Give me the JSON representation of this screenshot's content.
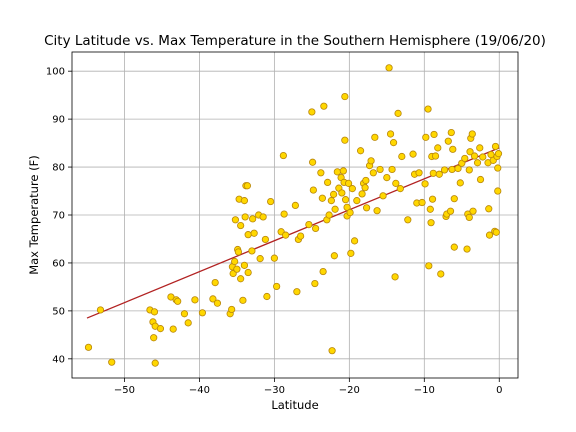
{
  "chart_data": {
    "type": "scatter",
    "title": "City Latitude vs. Max Temperature in the Southern Hemisphere (19/06/20)",
    "xlabel": "Latitude",
    "ylabel": "Max Temperature (F)",
    "xlim": [
      -57,
      2.5
    ],
    "ylim": [
      36,
      104
    ],
    "xticks": [
      -50,
      -40,
      -30,
      -20,
      -10,
      0
    ],
    "yticks": [
      40,
      50,
      60,
      70,
      80,
      90,
      100
    ],
    "grid": true,
    "marker_color": "#ffd700",
    "marker_edge_color": "#b8860b",
    "regression_color": "#b22222",
    "regression_line": {
      "x": [
        -55,
        0
      ],
      "y": [
        48.5,
        84
      ]
    },
    "points": [
      [
        -54.8,
        42.4
      ],
      [
        -53.2,
        50.2
      ],
      [
        -51.7,
        39.3
      ],
      [
        -46.6,
        50.2
      ],
      [
        -46.2,
        47.7
      ],
      [
        -46.1,
        44.4
      ],
      [
        -46.0,
        49.8
      ],
      [
        -45.9,
        39.1
      ],
      [
        -45.9,
        46.8
      ],
      [
        -45.2,
        46.3
      ],
      [
        -43.8,
        52.9
      ],
      [
        -43.5,
        46.2
      ],
      [
        -43.1,
        52.3
      ],
      [
        -42.9,
        52.0
      ],
      [
        -42.0,
        49.4
      ],
      [
        -41.5,
        47.5
      ],
      [
        -40.6,
        52.3
      ],
      [
        -39.6,
        49.6
      ],
      [
        -38.2,
        52.5
      ],
      [
        -37.9,
        55.9
      ],
      [
        -37.6,
        51.6
      ],
      [
        -35.9,
        49.4
      ],
      [
        -35.7,
        50.3
      ],
      [
        -35.6,
        59.2
      ],
      [
        -35.5,
        57.8
      ],
      [
        -35.3,
        60.3
      ],
      [
        -35.2,
        69.0
      ],
      [
        -35.0,
        58.7
      ],
      [
        -34.9,
        62.8
      ],
      [
        -34.8,
        62.3
      ],
      [
        -34.7,
        73.3
      ],
      [
        -34.5,
        56.7
      ],
      [
        -34.5,
        67.8
      ],
      [
        -34.2,
        52.2
      ],
      [
        -34.0,
        73.0
      ],
      [
        -34.0,
        59.5
      ],
      [
        -33.9,
        69.6
      ],
      [
        -33.8,
        76.1
      ],
      [
        -33.6,
        76.1
      ],
      [
        -33.5,
        58.0
      ],
      [
        -33.5,
        65.9
      ],
      [
        -33.0,
        62.5
      ],
      [
        -32.9,
        69.2
      ],
      [
        -32.7,
        66.2
      ],
      [
        -32.1,
        70.0
      ],
      [
        -31.9,
        60.9
      ],
      [
        -31.5,
        69.6
      ],
      [
        -31.2,
        64.9
      ],
      [
        -31.0,
        53.0
      ],
      [
        -30.5,
        72.8
      ],
      [
        -30.0,
        61.0
      ],
      [
        -29.7,
        55.1
      ],
      [
        -29.1,
        66.5
      ],
      [
        -28.8,
        82.4
      ],
      [
        -28.7,
        70.2
      ],
      [
        -28.5,
        65.8
      ],
      [
        -27.2,
        72.0
      ],
      [
        -27.0,
        54.0
      ],
      [
        -26.8,
        64.9
      ],
      [
        -26.5,
        65.6
      ],
      [
        -25.4,
        68.0
      ],
      [
        -25.0,
        91.5
      ],
      [
        -24.9,
        81.0
      ],
      [
        -24.8,
        75.2
      ],
      [
        -24.6,
        55.7
      ],
      [
        -24.5,
        67.2
      ],
      [
        -23.8,
        78.8
      ],
      [
        -23.6,
        73.5
      ],
      [
        -23.5,
        58.2
      ],
      [
        -23.4,
        92.7
      ],
      [
        -23.0,
        69.0
      ],
      [
        -22.9,
        76.8
      ],
      [
        -22.7,
        70.0
      ],
      [
        -22.4,
        73.0
      ],
      [
        -22.3,
        41.7
      ],
      [
        -22.1,
        74.3
      ],
      [
        -22.0,
        61.5
      ],
      [
        -21.9,
        71.2
      ],
      [
        -21.6,
        79.0
      ],
      [
        -21.4,
        75.6
      ],
      [
        -21.1,
        77.8
      ],
      [
        -21.0,
        74.6
      ],
      [
        -20.8,
        79.2
      ],
      [
        -20.7,
        76.8
      ],
      [
        -20.6,
        94.7
      ],
      [
        -20.6,
        85.6
      ],
      [
        -20.5,
        73.2
      ],
      [
        -20.3,
        71.6
      ],
      [
        -20.3,
        69.8
      ],
      [
        -20.1,
        76.6
      ],
      [
        -19.9,
        70.5
      ],
      [
        -19.8,
        62.0
      ],
      [
        -19.6,
        75.5
      ],
      [
        -19.3,
        64.6
      ],
      [
        -19.0,
        73.0
      ],
      [
        -18.5,
        83.4
      ],
      [
        -18.3,
        74.4
      ],
      [
        -18.1,
        76.6
      ],
      [
        -17.9,
        75.7
      ],
      [
        -17.8,
        77.2
      ],
      [
        -17.7,
        71.5
      ],
      [
        -17.3,
        80.3
      ],
      [
        -17.1,
        81.3
      ],
      [
        -16.8,
        78.8
      ],
      [
        -16.6,
        86.2
      ],
      [
        -16.3,
        70.9
      ],
      [
        -15.9,
        79.5
      ],
      [
        -15.5,
        74.0
      ],
      [
        -15.0,
        77.8
      ],
      [
        -14.7,
        100.7
      ],
      [
        -14.5,
        86.9
      ],
      [
        -14.3,
        79.5
      ],
      [
        -14.1,
        85.1
      ],
      [
        -13.9,
        57.1
      ],
      [
        -13.8,
        76.6
      ],
      [
        -13.5,
        91.2
      ],
      [
        -13.2,
        75.5
      ],
      [
        -13.0,
        82.2
      ],
      [
        -12.2,
        69.0
      ],
      [
        -11.5,
        82.7
      ],
      [
        -11.3,
        78.5
      ],
      [
        -11.0,
        72.5
      ],
      [
        -10.7,
        78.8
      ],
      [
        -10.3,
        72.6
      ],
      [
        -9.9,
        76.5
      ],
      [
        -9.8,
        86.2
      ],
      [
        -9.5,
        92.1
      ],
      [
        -9.4,
        59.4
      ],
      [
        -9.2,
        71.2
      ],
      [
        -9.1,
        68.4
      ],
      [
        -9.0,
        82.2
      ],
      [
        -8.9,
        73.3
      ],
      [
        -8.8,
        78.7
      ],
      [
        -8.7,
        86.8
      ],
      [
        -8.5,
        82.3
      ],
      [
        -8.2,
        84.0
      ],
      [
        -8.0,
        78.5
      ],
      [
        -7.8,
        57.7
      ],
      [
        -7.3,
        79.4
      ],
      [
        -7.1,
        69.7
      ],
      [
        -7.0,
        70.2
      ],
      [
        -6.8,
        85.4
      ],
      [
        -6.5,
        70.8
      ],
      [
        -6.4,
        87.2
      ],
      [
        -6.3,
        79.5
      ],
      [
        -6.2,
        83.7
      ],
      [
        -6.0,
        73.4
      ],
      [
        -6.0,
        63.3
      ],
      [
        -5.5,
        79.7
      ],
      [
        -5.2,
        76.7
      ],
      [
        -5.0,
        80.8
      ],
      [
        -4.6,
        81.8
      ],
      [
        -4.3,
        62.9
      ],
      [
        -4.2,
        70.2
      ],
      [
        -4.0,
        69.5
      ],
      [
        -4.0,
        79.4
      ],
      [
        -3.9,
        83.2
      ],
      [
        -3.8,
        86.0
      ],
      [
        -3.6,
        86.9
      ],
      [
        -3.5,
        70.8
      ],
      [
        -3.3,
        82.3
      ],
      [
        -2.9,
        80.9
      ],
      [
        -2.6,
        84.0
      ],
      [
        -2.5,
        77.4
      ],
      [
        -2.2,
        82.1
      ],
      [
        -1.5,
        80.9
      ],
      [
        -1.4,
        71.3
      ],
      [
        -1.3,
        65.8
      ],
      [
        -1.1,
        82.6
      ],
      [
        -0.8,
        81.4
      ],
      [
        -0.6,
        66.6
      ],
      [
        -0.5,
        84.3
      ],
      [
        -0.4,
        66.4
      ],
      [
        -0.3,
        82.2
      ],
      [
        -0.2,
        79.8
      ],
      [
        -0.1,
        82.8
      ],
      [
        -0.2,
        75.0
      ]
    ]
  }
}
